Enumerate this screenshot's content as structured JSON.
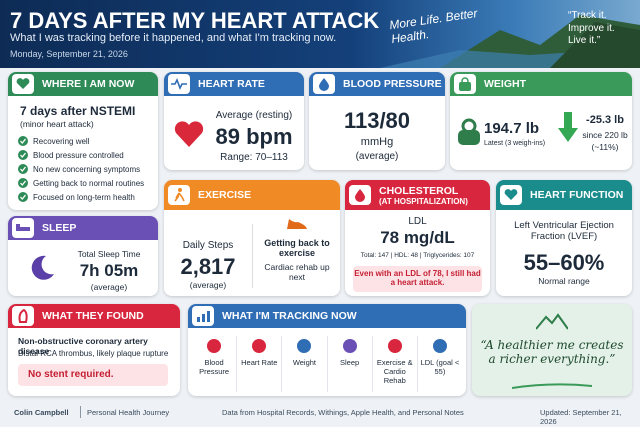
{
  "header": {
    "title": "7 DAYS AFTER MY HEART ATTACK",
    "subtitle": "What I was tracking before it happened, and what I'm tracking now.",
    "date": "Monday, September 21, 2026",
    "tagline": "More Life. Better Health.",
    "quote": "“Track it. Improve it. Live it.”"
  },
  "where_i_am_now": {
    "title": "WHERE I AM NOW",
    "headline": "7 days after NSTEMI",
    "note": "(minor heart attack)",
    "items": [
      "Recovering well",
      "Blood pressure controlled",
      "No new concerning symptoms",
      "Getting back to normal routines",
      "Focused on long-term health"
    ]
  },
  "heart_rate": {
    "title": "HEART RATE",
    "label": "Average (resting)",
    "value": "89 bpm",
    "range": "Range: 70–113"
  },
  "blood_pressure": {
    "title": "BLOOD PRESSURE",
    "value": "113/80",
    "unit": "mmHg",
    "note": "(average)"
  },
  "weight": {
    "title": "WEIGHT",
    "value": "194.7 lb",
    "note": "Latest (3 weigh-ins)",
    "change": "-25.3 lb",
    "since": "since 220 lb",
    "percent": "(~11%)"
  },
  "sleep": {
    "title": "SLEEP",
    "label": "Total Sleep Time",
    "value": "7h 05m",
    "note": "(average)"
  },
  "exercise": {
    "title": "EXERCISE",
    "label": "Daily Steps",
    "value": "2,817",
    "note": "(average)",
    "status": "Getting back to exercise",
    "next": "Cardiac rehab up next"
  },
  "cholesterol": {
    "title": "CHOLESTEROL",
    "subtitle": "(AT HOSPITALIZATION)",
    "label": "LDL",
    "value": "78 mg/dL",
    "details": "Total: 147 | HDL: 48 | Triglycerides: 107",
    "callout": "Even with an LDL of 78, I still had a heart attack."
  },
  "heart_function": {
    "title": "HEART FUNCTION",
    "label": "Left Ventricular Ejection Fraction (LVEF)",
    "value": "55–60%",
    "note": "Normal range"
  },
  "findings": {
    "title": "WHAT THEY FOUND",
    "headline": "Non-obstructive coronary artery disease",
    "detail": "Distal RCA thrombus, likely plaque rupture",
    "callout": "No stent required."
  },
  "tracking": {
    "title": "WHAT I'M TRACKING NOW",
    "items": [
      "Blood Pressure",
      "Heart Rate",
      "Weight",
      "Sleep",
      "Exercise & Cardio Rehab",
      "LDL (goal < 55)"
    ]
  },
  "motto": "“A healthier me creates a richer everything.”",
  "footer": {
    "author": "Colin Campbell",
    "project": "Personal Health Journey",
    "sources": "Data from Hospital Records, Withings, Apple Health, and Personal Notes",
    "updated": "Updated: September 21, 2026"
  }
}
